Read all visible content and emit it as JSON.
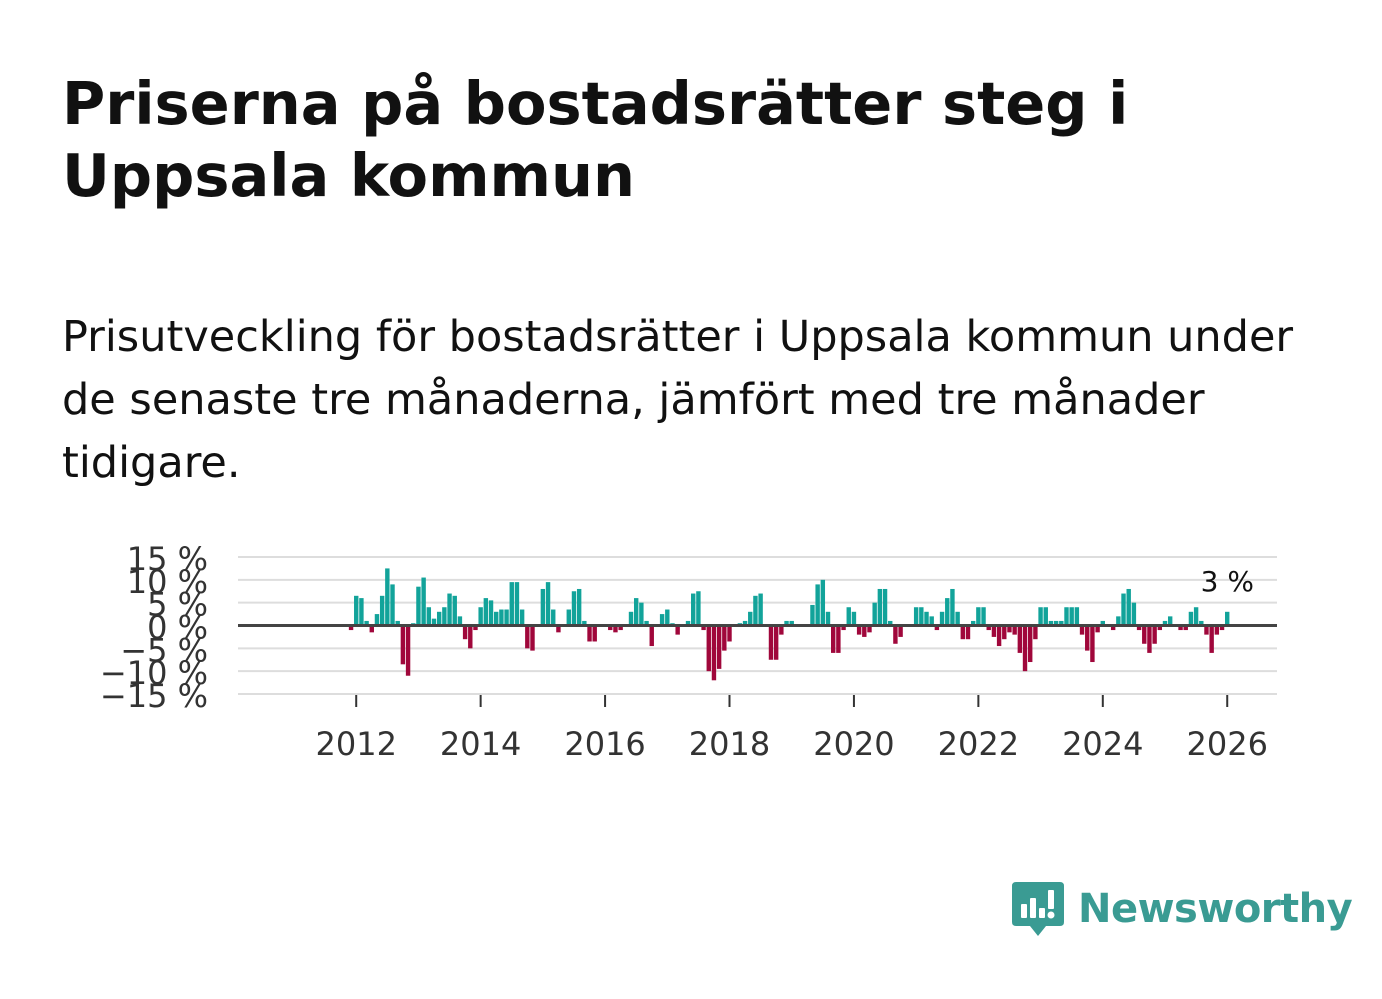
{
  "title": "Priserna på bostadsrätter steg i Uppsala kommun",
  "subtitle": "Prisutveckling för bostadsrätter i Uppsala kommun under de senaste tre månaderna, jämfört med tre månader tidigare.",
  "brand": {
    "name": "Newsworthy",
    "color": "#3a9b93"
  },
  "colors": {
    "positive": "#12a39a",
    "negative": "#a0073b",
    "grid": "#dddddd",
    "zero_line": "#444444",
    "text": "#333333"
  },
  "chart_data": {
    "type": "bar",
    "title": "Priserna på bostadsrätter steg i Uppsala kommun",
    "xlabel": "",
    "ylabel": "",
    "unit": "%",
    "ylim": [
      -15,
      15
    ],
    "yticks": [
      15,
      10,
      5,
      0,
      -5,
      -10,
      -15
    ],
    "ytick_labels": [
      "15 %",
      "10 %",
      "5 %",
      "0 %",
      "−5 %",
      "−10 %",
      "−15 %"
    ],
    "xticks": [
      2012,
      2014,
      2016,
      2018,
      2020,
      2022,
      2024,
      2026
    ],
    "xtick_labels": [
      "2012",
      "2014",
      "2016",
      "2018",
      "2020",
      "2022",
      "2024",
      "2026"
    ],
    "xlim": [
      2010.1,
      2026.8
    ],
    "start": 2011.917,
    "step": 0.08333,
    "last_label": "3 %",
    "values": [
      -1,
      6.5,
      6,
      1,
      -1.5,
      2.5,
      6.5,
      12.5,
      9,
      1,
      -8.5,
      -11,
      0.5,
      8.5,
      10.5,
      4,
      1.5,
      3,
      4,
      7,
      6.5,
      2,
      -3,
      -5,
      -1,
      4,
      6,
      5.5,
      3,
      3.5,
      3.5,
      9.5,
      9.5,
      3.5,
      -5,
      -5.5,
      0,
      8,
      9.5,
      3.5,
      -1.5,
      0,
      3.5,
      7.5,
      8,
      1,
      -3.5,
      -3.5,
      0,
      0,
      -1,
      -1.5,
      -1,
      0,
      3,
      6,
      5,
      1,
      -4.5,
      0,
      2.5,
      3.5,
      0.5,
      -2,
      0,
      1,
      7,
      7.5,
      -1,
      -10,
      -12,
      -9.5,
      -5.5,
      -3.5,
      0,
      0.5,
      1,
      3,
      6.5,
      7,
      0,
      -7.5,
      -7.5,
      -2,
      1,
      1,
      0,
      0,
      0,
      4.5,
      9,
      10,
      3,
      -6,
      -6,
      -1,
      4,
      3,
      -2,
      -2.5,
      -1.5,
      5,
      8,
      8,
      1,
      -4,
      -2.5,
      0,
      0,
      4,
      4,
      3,
      2,
      -1,
      3,
      6,
      8,
      3,
      -3,
      -3,
      1,
      4,
      4,
      -1,
      -2.5,
      -4.5,
      -3,
      -1.5,
      -2,
      -6,
      -10,
      -8,
      -3,
      4,
      4,
      1,
      1,
      1,
      4,
      4,
      4,
      -2,
      -5.5,
      -8,
      -1.5,
      1,
      0,
      -1,
      2,
      7,
      8,
      5,
      -1,
      -4,
      -6,
      -4,
      -1,
      1,
      2,
      0,
      -1,
      -1,
      3,
      4,
      1,
      -2,
      -6,
      -2,
      -1,
      3
    ]
  }
}
